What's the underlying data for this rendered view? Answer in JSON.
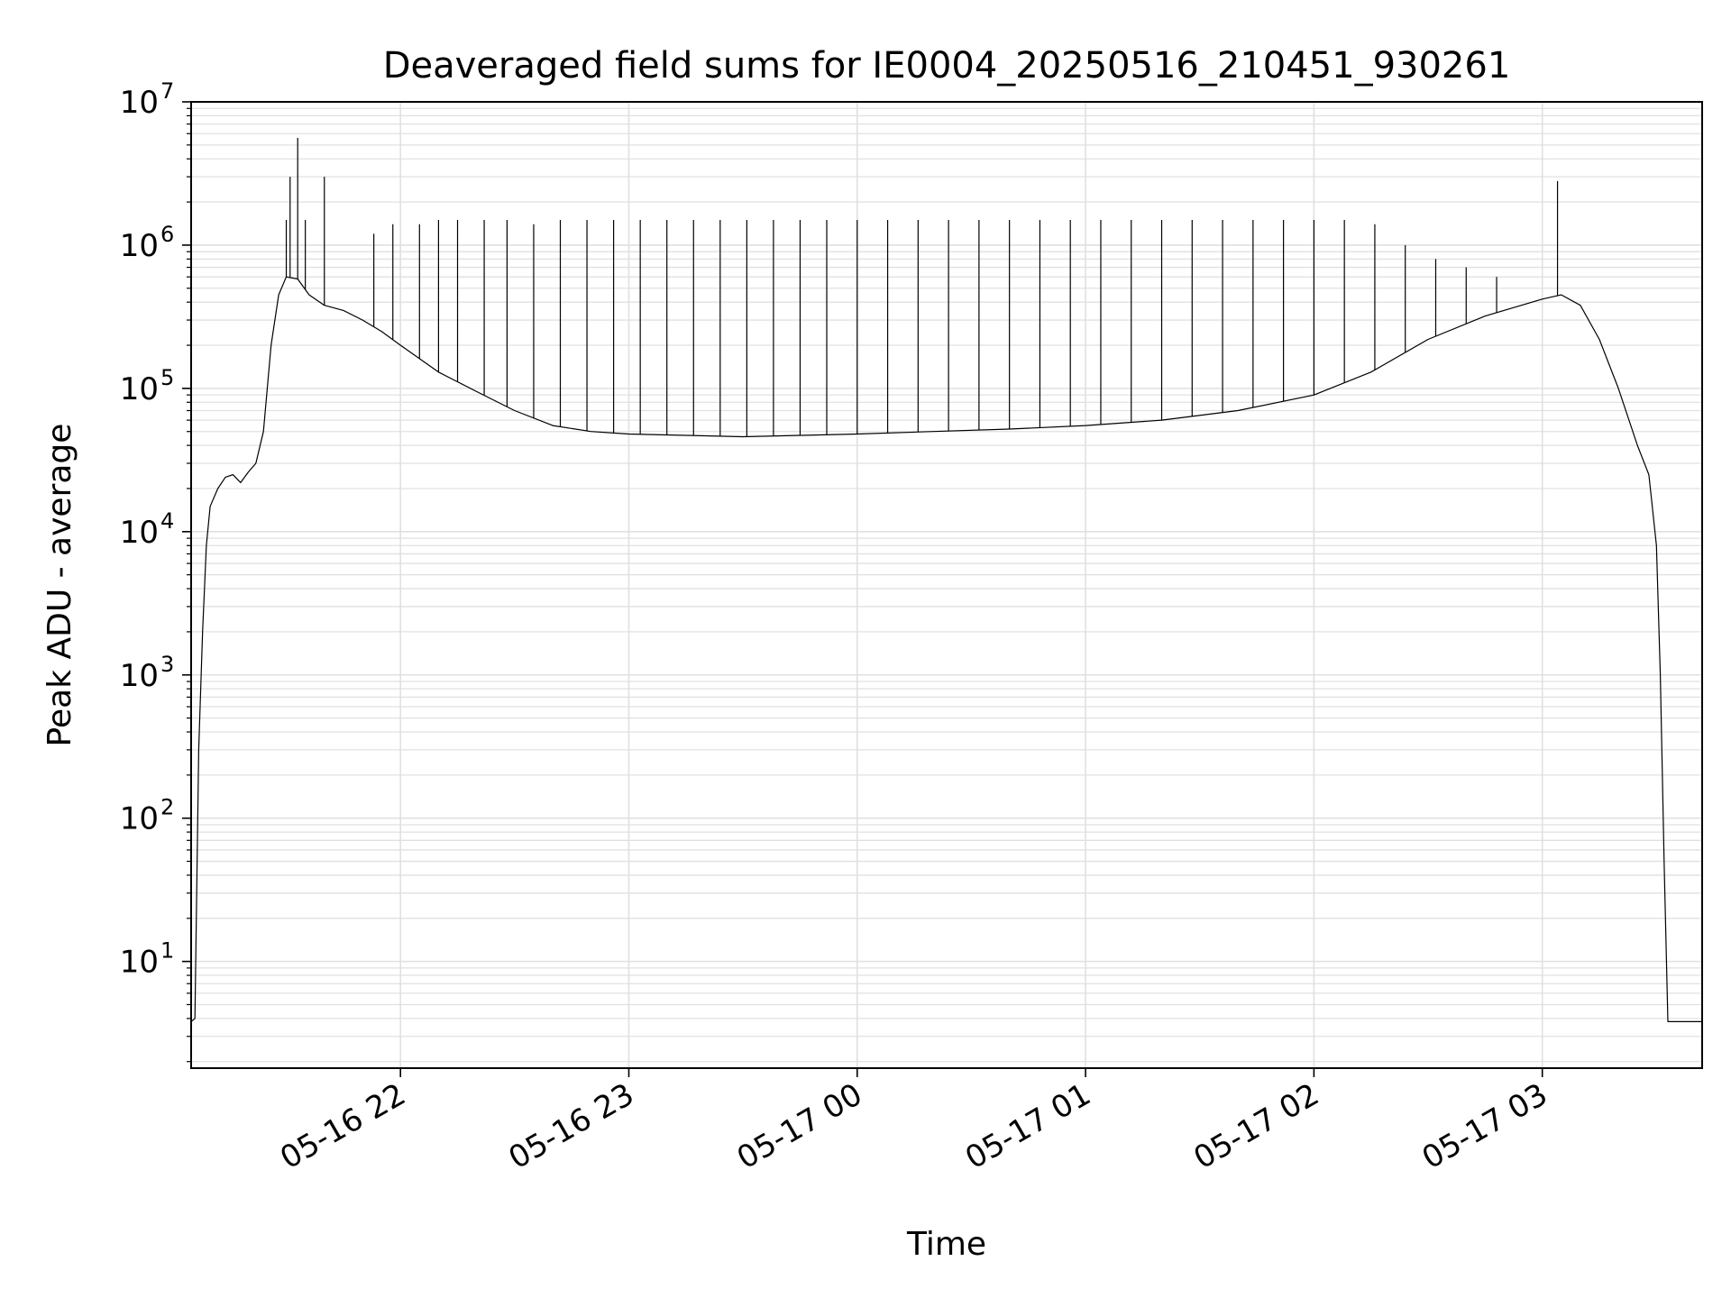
{
  "chart_data": {
    "type": "line",
    "title": "Deaveraged field sums for IE0004_20250516_210451_930261",
    "xlabel": "Time",
    "ylabel": "Peak ADU - average",
    "y_scale": "log",
    "ylim": [
      1.8,
      10000000
    ],
    "xlim": [
      "2025-05-16 21:05",
      "2025-05-17 03:42"
    ],
    "grid": true,
    "line_color": "#000000",
    "grid_color": "#e0e0e0",
    "x_ticks": [
      {
        "value": "2025-05-16 22:00",
        "label": "05-16 22"
      },
      {
        "value": "2025-05-16 23:00",
        "label": "05-16 23"
      },
      {
        "value": "2025-05-17 00:00",
        "label": "05-17 00"
      },
      {
        "value": "2025-05-17 01:00",
        "label": "05-17 01"
      },
      {
        "value": "2025-05-17 02:00",
        "label": "05-17 02"
      },
      {
        "value": "2025-05-17 03:00",
        "label": "05-17 03"
      }
    ],
    "y_ticks": [
      {
        "value": 10,
        "label": "10",
        "exp": "1"
      },
      {
        "value": 100,
        "label": "10",
        "exp": "2"
      },
      {
        "value": 1000,
        "label": "10",
        "exp": "3"
      },
      {
        "value": 10000,
        "label": "10",
        "exp": "4"
      },
      {
        "value": 100000,
        "label": "10",
        "exp": "5"
      },
      {
        "value": 1000000,
        "label": "10",
        "exp": "6"
      },
      {
        "value": 10000000,
        "label": "10",
        "exp": "7"
      }
    ],
    "series": [
      {
        "points": [
          [
            "2025-05-16 21:05",
            3.8
          ],
          [
            "2025-05-16 21:06",
            4
          ],
          [
            "2025-05-16 21:07",
            300
          ],
          [
            "2025-05-16 21:08",
            2000
          ],
          [
            "2025-05-16 21:09",
            8000
          ],
          [
            "2025-05-16 21:10",
            15000
          ],
          [
            "2025-05-16 21:12",
            20000
          ],
          [
            "2025-05-16 21:14",
            24000
          ],
          [
            "2025-05-16 21:16",
            25000
          ],
          [
            "2025-05-16 21:18",
            22000
          ],
          [
            "2025-05-16 21:20",
            26000
          ],
          [
            "2025-05-16 21:22",
            30000
          ],
          [
            "2025-05-16 21:24",
            50000
          ],
          [
            "2025-05-16 21:26",
            200000
          ],
          [
            "2025-05-16 21:28",
            450000
          ],
          [
            "2025-05-16 21:30",
            600000
          ],
          [
            "2025-05-16 21:33",
            580000
          ],
          [
            "2025-05-16 21:36",
            450000
          ],
          [
            "2025-05-16 21:40",
            380000
          ],
          [
            "2025-05-16 21:45",
            350000
          ],
          [
            "2025-05-16 21:50",
            300000
          ],
          [
            "2025-05-16 21:55",
            250000
          ],
          [
            "2025-05-16 22:00",
            200000
          ],
          [
            "2025-05-16 22:10",
            130000
          ],
          [
            "2025-05-16 22:20",
            95000
          ],
          [
            "2025-05-16 22:30",
            70000
          ],
          [
            "2025-05-16 22:40",
            55000
          ],
          [
            "2025-05-16 22:50",
            50000
          ],
          [
            "2025-05-16 23:00",
            48000
          ],
          [
            "2025-05-16 23:15",
            47000
          ],
          [
            "2025-05-16 23:30",
            46000
          ],
          [
            "2025-05-16 23:45",
            47000
          ],
          [
            "2025-05-17 00:00",
            48000
          ],
          [
            "2025-05-17 00:20",
            50000
          ],
          [
            "2025-05-17 00:40",
            52000
          ],
          [
            "2025-05-17 01:00",
            55000
          ],
          [
            "2025-05-17 01:20",
            60000
          ],
          [
            "2025-05-17 01:40",
            70000
          ],
          [
            "2025-05-17 02:00",
            90000
          ],
          [
            "2025-05-17 02:15",
            130000
          ],
          [
            "2025-05-17 02:30",
            220000
          ],
          [
            "2025-05-17 02:45",
            320000
          ],
          [
            "2025-05-17 03:00",
            420000
          ],
          [
            "2025-05-17 03:05",
            450000
          ],
          [
            "2025-05-17 03:10",
            380000
          ],
          [
            "2025-05-17 03:15",
            220000
          ],
          [
            "2025-05-17 03:20",
            100000
          ],
          [
            "2025-05-17 03:25",
            40000
          ],
          [
            "2025-05-17 03:28",
            25000
          ],
          [
            "2025-05-17 03:30",
            8000
          ],
          [
            "2025-05-17 03:31",
            1000
          ],
          [
            "2025-05-17 03:32",
            50
          ],
          [
            "2025-05-17 03:33",
            3.8
          ],
          [
            "2025-05-17 03:42",
            3.8
          ]
        ]
      }
    ],
    "spikes": [
      [
        "2025-05-16 21:30",
        1500000
      ],
      [
        "2025-05-16 21:31",
        3000000
      ],
      [
        "2025-05-16 21:33",
        5600000
      ],
      [
        "2025-05-16 21:35",
        1500000
      ],
      [
        "2025-05-16 21:40",
        3000000
      ],
      [
        "2025-05-16 21:53",
        1200000
      ],
      [
        "2025-05-16 21:58",
        1400000
      ],
      [
        "2025-05-16 22:05",
        1400000
      ],
      [
        "2025-05-16 22:10",
        1500000
      ],
      [
        "2025-05-16 22:15",
        1500000
      ],
      [
        "2025-05-16 22:22",
        1500000
      ],
      [
        "2025-05-16 22:28",
        1500000
      ],
      [
        "2025-05-16 22:35",
        1400000
      ],
      [
        "2025-05-16 22:42",
        1500000
      ],
      [
        "2025-05-16 22:49",
        1500000
      ],
      [
        "2025-05-16 22:56",
        1500000
      ],
      [
        "2025-05-16 23:03",
        1500000
      ],
      [
        "2025-05-16 23:10",
        1500000
      ],
      [
        "2025-05-16 23:17",
        1500000
      ],
      [
        "2025-05-16 23:24",
        1500000
      ],
      [
        "2025-05-16 23:31",
        1500000
      ],
      [
        "2025-05-16 23:38",
        1500000
      ],
      [
        "2025-05-16 23:45",
        1500000
      ],
      [
        "2025-05-16 23:52",
        1500000
      ],
      [
        "2025-05-17 00:00",
        1500000
      ],
      [
        "2025-05-17 00:08",
        1500000
      ],
      [
        "2025-05-17 00:16",
        1500000
      ],
      [
        "2025-05-17 00:24",
        1500000
      ],
      [
        "2025-05-17 00:32",
        1500000
      ],
      [
        "2025-05-17 00:40",
        1500000
      ],
      [
        "2025-05-17 00:48",
        1500000
      ],
      [
        "2025-05-17 00:56",
        1500000
      ],
      [
        "2025-05-17 01:04",
        1500000
      ],
      [
        "2025-05-17 01:12",
        1500000
      ],
      [
        "2025-05-17 01:20",
        1500000
      ],
      [
        "2025-05-17 01:28",
        1500000
      ],
      [
        "2025-05-17 01:36",
        1500000
      ],
      [
        "2025-05-17 01:44",
        1500000
      ],
      [
        "2025-05-17 01:52",
        1500000
      ],
      [
        "2025-05-17 02:00",
        1500000
      ],
      [
        "2025-05-17 02:08",
        1500000
      ],
      [
        "2025-05-17 02:16",
        1400000
      ],
      [
        "2025-05-17 02:24",
        1000000
      ],
      [
        "2025-05-17 02:32",
        800000
      ],
      [
        "2025-05-17 02:40",
        700000
      ],
      [
        "2025-05-17 02:48",
        600000
      ],
      [
        "2025-05-17 03:04",
        2800000
      ]
    ]
  }
}
